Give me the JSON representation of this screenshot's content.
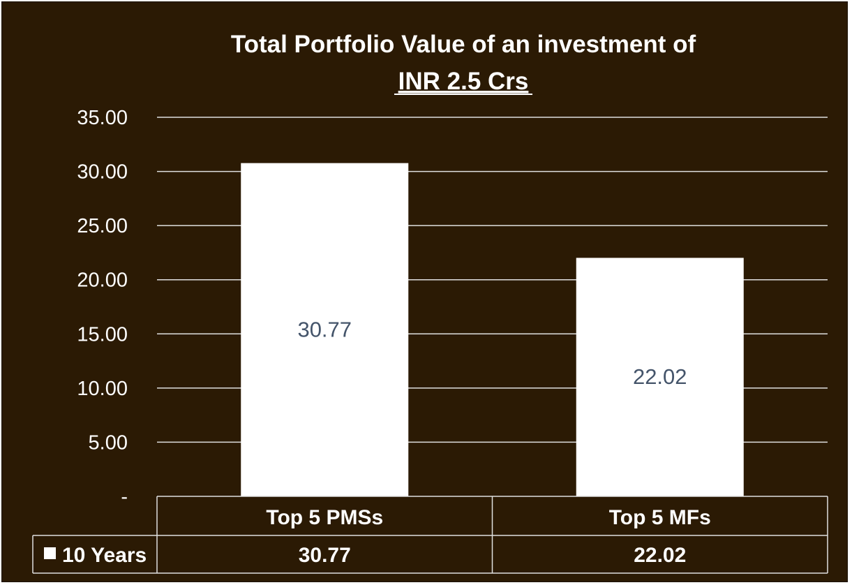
{
  "chart_data": {
    "type": "bar",
    "title": "Total Portfolio Value of an investment of",
    "subtitle": "INR 2.5 Crs",
    "categories": [
      "Top 5 PMSs",
      "Top 5 MFs"
    ],
    "series": [
      {
        "name": "10 Years",
        "values": [
          30.77,
          22.02
        ]
      }
    ],
    "data_labels": [
      "30.77",
      "22.02"
    ],
    "table_values": [
      "30.77",
      "22.02"
    ],
    "y_ticks": [
      "-",
      "5.00",
      "10.00",
      "15.00",
      "20.00",
      "25.00",
      "30.00",
      "35.00"
    ],
    "ylim": [
      0,
      35
    ],
    "grid": true,
    "legend": "data table",
    "colors": {
      "background": "#2b1a04",
      "bar": "#ffffff",
      "gridline": "#e0e0e0",
      "data_label": "#44546a",
      "text": "#ffffff"
    }
  }
}
